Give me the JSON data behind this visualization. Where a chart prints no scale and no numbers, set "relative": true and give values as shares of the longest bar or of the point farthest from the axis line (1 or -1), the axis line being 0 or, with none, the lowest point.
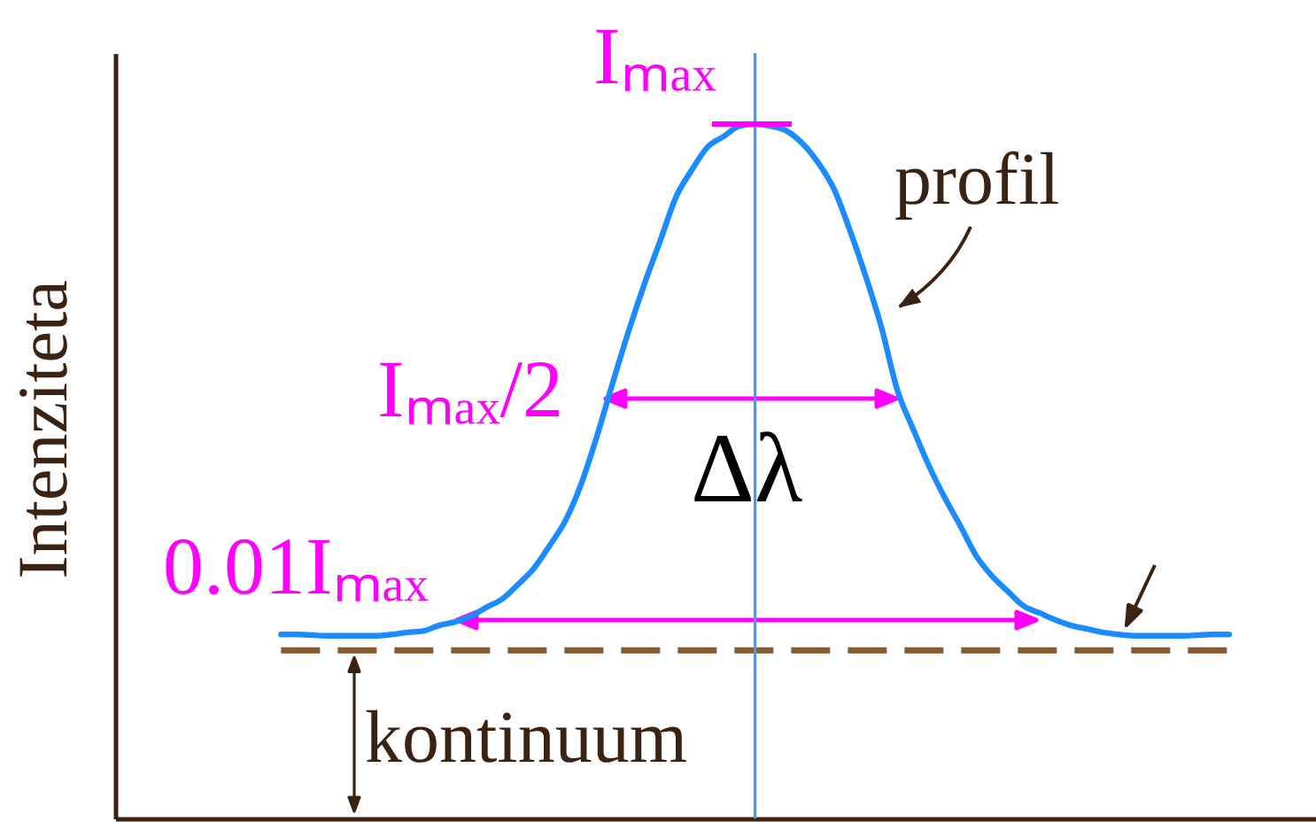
{
  "chart_data": {
    "type": "line",
    "relative": true,
    "ylabel": "Intenziteta",
    "tick_labels": false,
    "color": "#1a8cff",
    "categories": [
      null,
      null,
      null,
      null,
      null,
      null,
      null,
      null,
      null,
      null,
      null,
      null,
      null,
      null,
      null,
      null,
      null,
      null,
      null,
      null,
      null,
      null,
      null,
      null,
      null,
      null,
      null,
      null,
      null,
      null,
      null,
      null,
      null,
      null,
      null,
      null,
      null,
      null,
      null,
      null,
      null,
      null,
      null,
      null,
      null,
      null,
      null,
      null,
      null,
      null,
      null,
      null,
      null,
      null,
      null,
      null,
      null,
      null,
      null,
      null,
      null,
      null,
      null,
      null,
      null,
      null,
      null,
      null,
      null,
      null,
      null,
      null,
      null,
      null,
      null,
      null
    ],
    "values": [
      null,
      null,
      null,
      null,
      null,
      null,
      null,
      null,
      null,
      null,
      0.265,
      0.265,
      0.264,
      0.263,
      0.263,
      0.263,
      0.263,
      0.265,
      0.268,
      0.27,
      0.278,
      0.283,
      0.291,
      0.304,
      0.316,
      0.337,
      0.36,
      0.393,
      0.429,
      0.482,
      0.551,
      0.628,
      0.702,
      0.77,
      0.832,
      0.895,
      0.934,
      0.967,
      0.982,
      0.997,
      1.0,
      0.997,
      0.99,
      0.972,
      0.944,
      0.906,
      0.847,
      0.781,
      0.707,
      0.617,
      0.561,
      0.508,
      0.462,
      0.421,
      0.378,
      0.349,
      0.327,
      0.306,
      0.296,
      0.286,
      0.278,
      0.273,
      0.268,
      0.265,
      0.263,
      0.263,
      0.263,
      0.263,
      0.264,
      0.265,
      0.265,
      null,
      null,
      null,
      null,
      null
    ],
    "ref_lines": [
      {
        "axis": "y",
        "value": 0.242,
        "color": "#8b5a2b",
        "line_style": "dashed"
      }
    ],
    "annotations": [
      "Iₘₐₓ",
      "Iₘₐₓ/2",
      "Δλ",
      "0.01Iₘₐₓ",
      "profil",
      {
        "text": "kontinuum",
        "y": 0.242
      }
    ]
  }
}
